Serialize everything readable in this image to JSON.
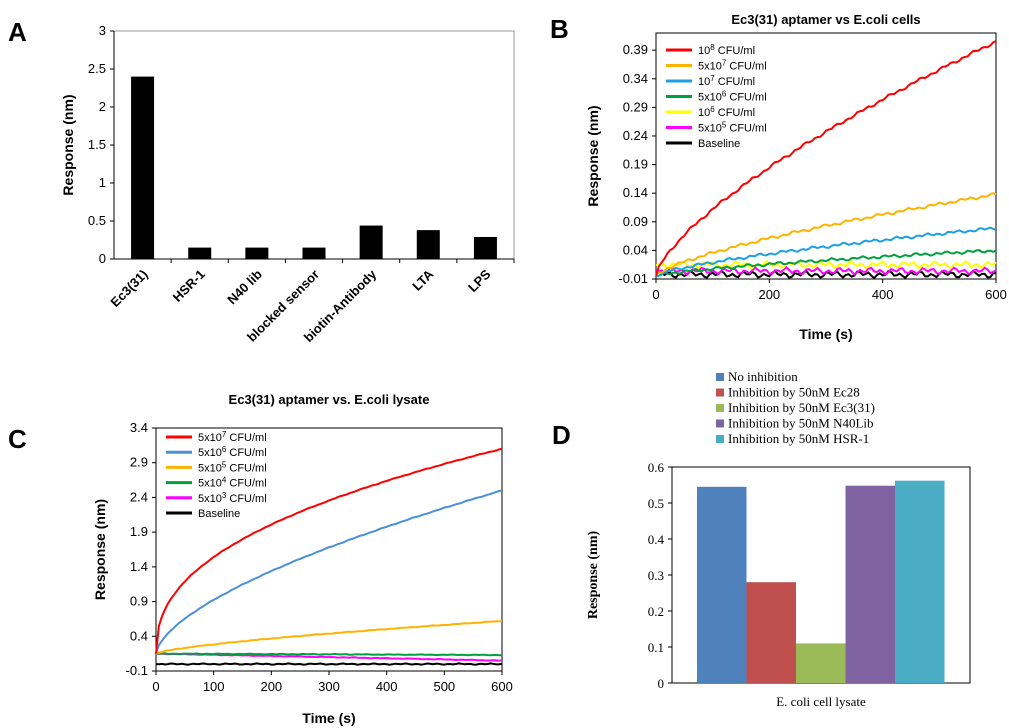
{
  "panels": {
    "A": "A",
    "B": "B",
    "C": "C",
    "D": "D"
  },
  "chart_data": [
    {
      "id": "A",
      "type": "bar",
      "title": "",
      "xlabel": "",
      "ylabel": "Response  (nm)",
      "ylim": [
        0,
        3
      ],
      "yticks": [
        "0",
        "0.5",
        "1",
        "1.5",
        "2",
        "2.5",
        "3"
      ],
      "categories": [
        "Ec3(31)",
        "HSR-1",
        "N40 lib",
        "blocked sensor",
        "biotin-Antibody",
        "LTA",
        "LPS"
      ],
      "values": [
        2.4,
        0.15,
        0.15,
        0.15,
        0.44,
        0.38,
        0.29
      ],
      "bar_color": "#000000",
      "grid": false
    },
    {
      "id": "B",
      "type": "line",
      "title": "Ec3(31)  aptamer vs E.coli cells",
      "xlabel": "Time (s)",
      "ylabel": "Response  (nm)",
      "xlim": [
        0,
        600
      ],
      "ylim": [
        -0.01,
        0.42
      ],
      "xticks": [
        "0",
        "200",
        "400",
        "600"
      ],
      "yticks": [
        "-0.01",
        "0.04",
        "0.09",
        "0.14",
        "0.19",
        "0.24",
        "0.29",
        "0.34",
        "0.39"
      ],
      "legend_position": "top-left",
      "series": [
        {
          "base": "10",
          "sup": "8",
          "unit": " CFU/ml",
          "color": "#ff0000",
          "final": 0.405,
          "shape": "concave"
        },
        {
          "base": "5x10",
          "sup": "7",
          "unit": " CFU/ml",
          "color": "#ffb300",
          "final": 0.138,
          "shape": "concave"
        },
        {
          "base": "10",
          "sup": "7",
          "unit": " CFU/ml",
          "color": "#1ea0e6",
          "final": 0.079,
          "shape": "concave"
        },
        {
          "base": "5x10",
          "sup": "6",
          "unit": " CFU/ml",
          "color": "#00a040",
          "final": 0.04,
          "shape": "concave"
        },
        {
          "base": "10",
          "sup": "6",
          "unit": " CFU/ml",
          "color": "#ffff00",
          "final": 0.015,
          "shape": "flat"
        },
        {
          "base": "5x10",
          "sup": "5",
          "unit": " CFU/ml",
          "color": "#ff00ff",
          "final": 0.004,
          "shape": "flat"
        },
        {
          "base": "Baseline",
          "sup": "",
          "unit": "",
          "color": "#000000",
          "final": -0.002,
          "shape": "flat"
        }
      ]
    },
    {
      "id": "C",
      "type": "line",
      "title": "Ec3(31)  aptamer vs. E.coli lysate",
      "xlabel": "Time (s)",
      "ylabel": "Response  (nm)",
      "xlim": [
        0,
        600
      ],
      "ylim": [
        -0.1,
        3.4
      ],
      "xticks": [
        "0",
        "100",
        "200",
        "300",
        "400",
        "500",
        "600"
      ],
      "yticks": [
        "-0.1",
        "0.4",
        "0.9",
        "1.4",
        "1.9",
        "2.4",
        "2.9",
        "3.4"
      ],
      "legend_position": "top-left",
      "series": [
        {
          "base": "5x10",
          "sup": "7",
          "unit": " CFU/ml",
          "color": "#ff0000",
          "final": 3.1,
          "shape": "sqrt"
        },
        {
          "base": "5x10",
          "sup": "6",
          "unit": " CFU/ml",
          "color": "#4a90d9",
          "final": 2.5,
          "shape": "pow"
        },
        {
          "base": "5x10",
          "sup": "5",
          "unit": " CFU/ml",
          "color": "#ffb300",
          "final": 0.62,
          "shape": "concave"
        },
        {
          "base": "5x10",
          "sup": "4",
          "unit": " CFU/ml",
          "color": "#00a040",
          "final": 0.13,
          "shape": "linear"
        },
        {
          "base": "5x10",
          "sup": "3",
          "unit": " CFU/ml",
          "color": "#ff00ff",
          "final": 0.05,
          "shape": "linear"
        },
        {
          "base": "Baseline",
          "sup": "",
          "unit": "",
          "color": "#000000",
          "final": 0.0,
          "shape": "flat"
        }
      ]
    },
    {
      "id": "D",
      "type": "bar",
      "title": "",
      "xlabel": "E. coli cell lysate",
      "ylabel": "Response (nm)",
      "ylim": [
        0,
        0.6
      ],
      "yticks": [
        "0",
        "0.1",
        "0.2",
        "0.3",
        "0.4",
        "0.5",
        "0.6"
      ],
      "legend_position": "top",
      "series": [
        {
          "name": "No inhibition",
          "value": 0.545,
          "color": "#4f81bd"
        },
        {
          "name": "Inhibition by 50nM Ec28",
          "value": 0.28,
          "color": "#c0504d"
        },
        {
          "name": "Inhibition by 50nM Ec3(31)",
          "value": 0.11,
          "color": "#9bbb59"
        },
        {
          "name": "Inhibition by 50nM N40Lib",
          "value": 0.548,
          "color": "#8064a2"
        },
        {
          "name": "Inhibition by 50nM HSR-1",
          "value": 0.562,
          "color": "#4bacc6"
        }
      ]
    }
  ]
}
